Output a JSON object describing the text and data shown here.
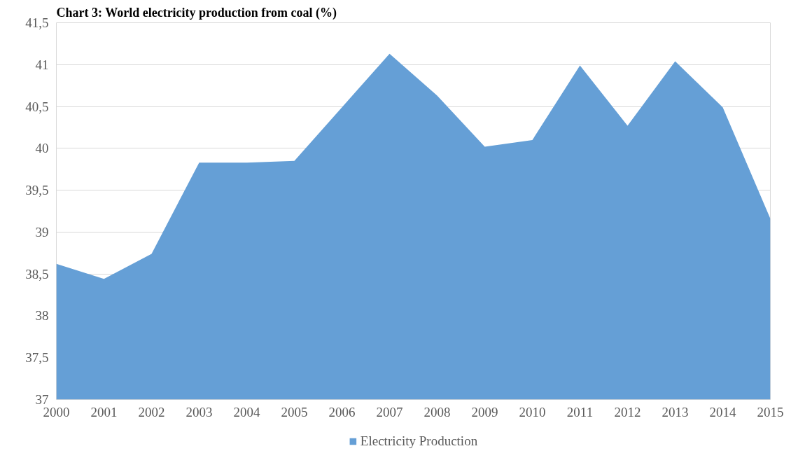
{
  "chart_data": {
    "type": "area",
    "title": "Chart 3: World electricity production from coal (%)",
    "categories": [
      "2000",
      "2001",
      "2002",
      "2003",
      "2004",
      "2005",
      "2006",
      "2007",
      "2008",
      "2009",
      "2010",
      "2011",
      "2012",
      "2013",
      "2014",
      "2015"
    ],
    "series": [
      {
        "name": "Electricity Production",
        "color": "#659fd6",
        "values": [
          38.62,
          38.44,
          38.74,
          39.83,
          39.83,
          39.85,
          40.49,
          41.13,
          40.63,
          40.02,
          40.1,
          40.99,
          40.27,
          41.04,
          40.49,
          39.16
        ]
      }
    ],
    "ylim": [
      37,
      41.5
    ],
    "yticks": [
      37,
      {
        "value": 37.5,
        "label": "37,5"
      },
      38,
      {
        "value": 38.5,
        "label": "38,5"
      },
      39,
      {
        "value": 39.5,
        "label": "39,5"
      },
      40,
      {
        "value": 40.5,
        "label": "40,5"
      },
      41,
      {
        "value": 41.5,
        "label": "41,5"
      }
    ],
    "grid": "y",
    "legend": "bottom"
  }
}
